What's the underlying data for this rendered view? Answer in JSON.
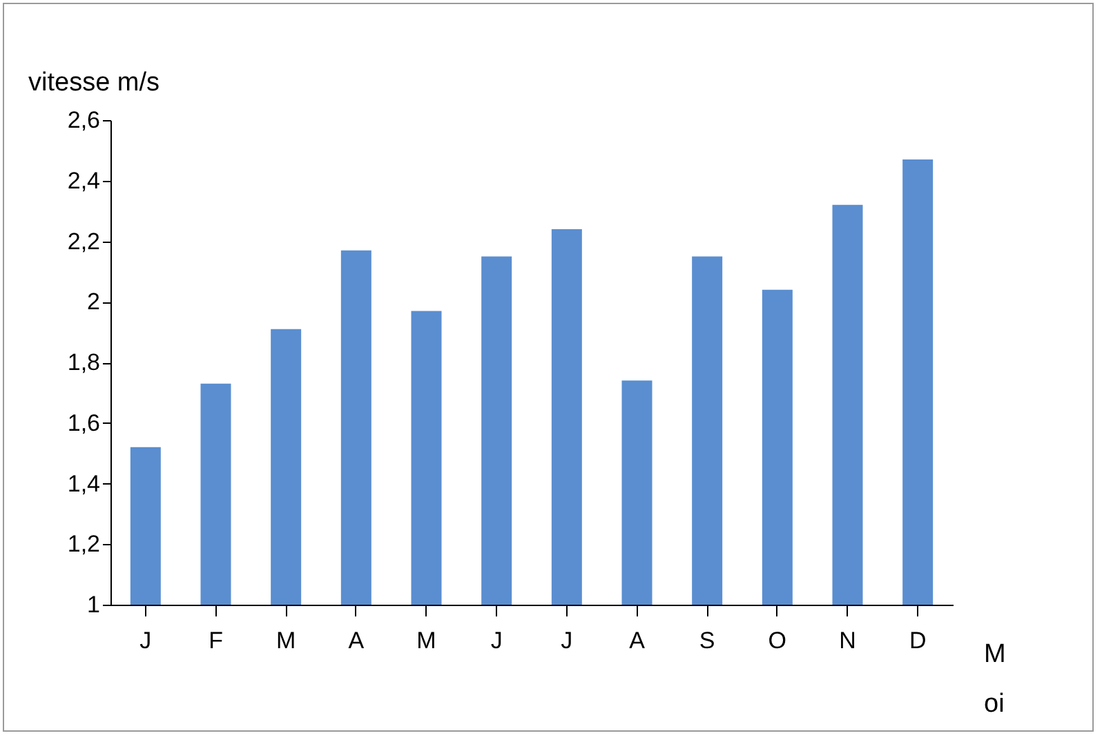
{
  "chart_data": {
    "type": "bar",
    "xlabel": "M oi",
    "ylabel": "vitesse m/s",
    "categories": [
      "J",
      "F",
      "M",
      "A",
      "M",
      "J",
      "J",
      "A",
      "S",
      "O",
      "N",
      "D"
    ],
    "values": [
      1.52,
      1.73,
      1.91,
      2.17,
      1.97,
      2.15,
      2.24,
      1.74,
      2.15,
      2.04,
      2.32,
      2.47
    ],
    "color": "#5a8ed0",
    "ylim": [
      1,
      2.6
    ],
    "yticks": [
      1,
      {
        "value": 1.2,
        "label": "1,2"
      },
      {
        "value": 1.4,
        "label": "1,4"
      },
      {
        "value": 1.6,
        "label": "1,6"
      },
      {
        "value": 1.8,
        "label": "1,8"
      },
      2,
      {
        "value": 2.2,
        "label": "2,2"
      },
      {
        "value": 2.4,
        "label": "2,4"
      },
      {
        "value": 2.6,
        "label": "2,6"
      }
    ],
    "grid": false
  }
}
